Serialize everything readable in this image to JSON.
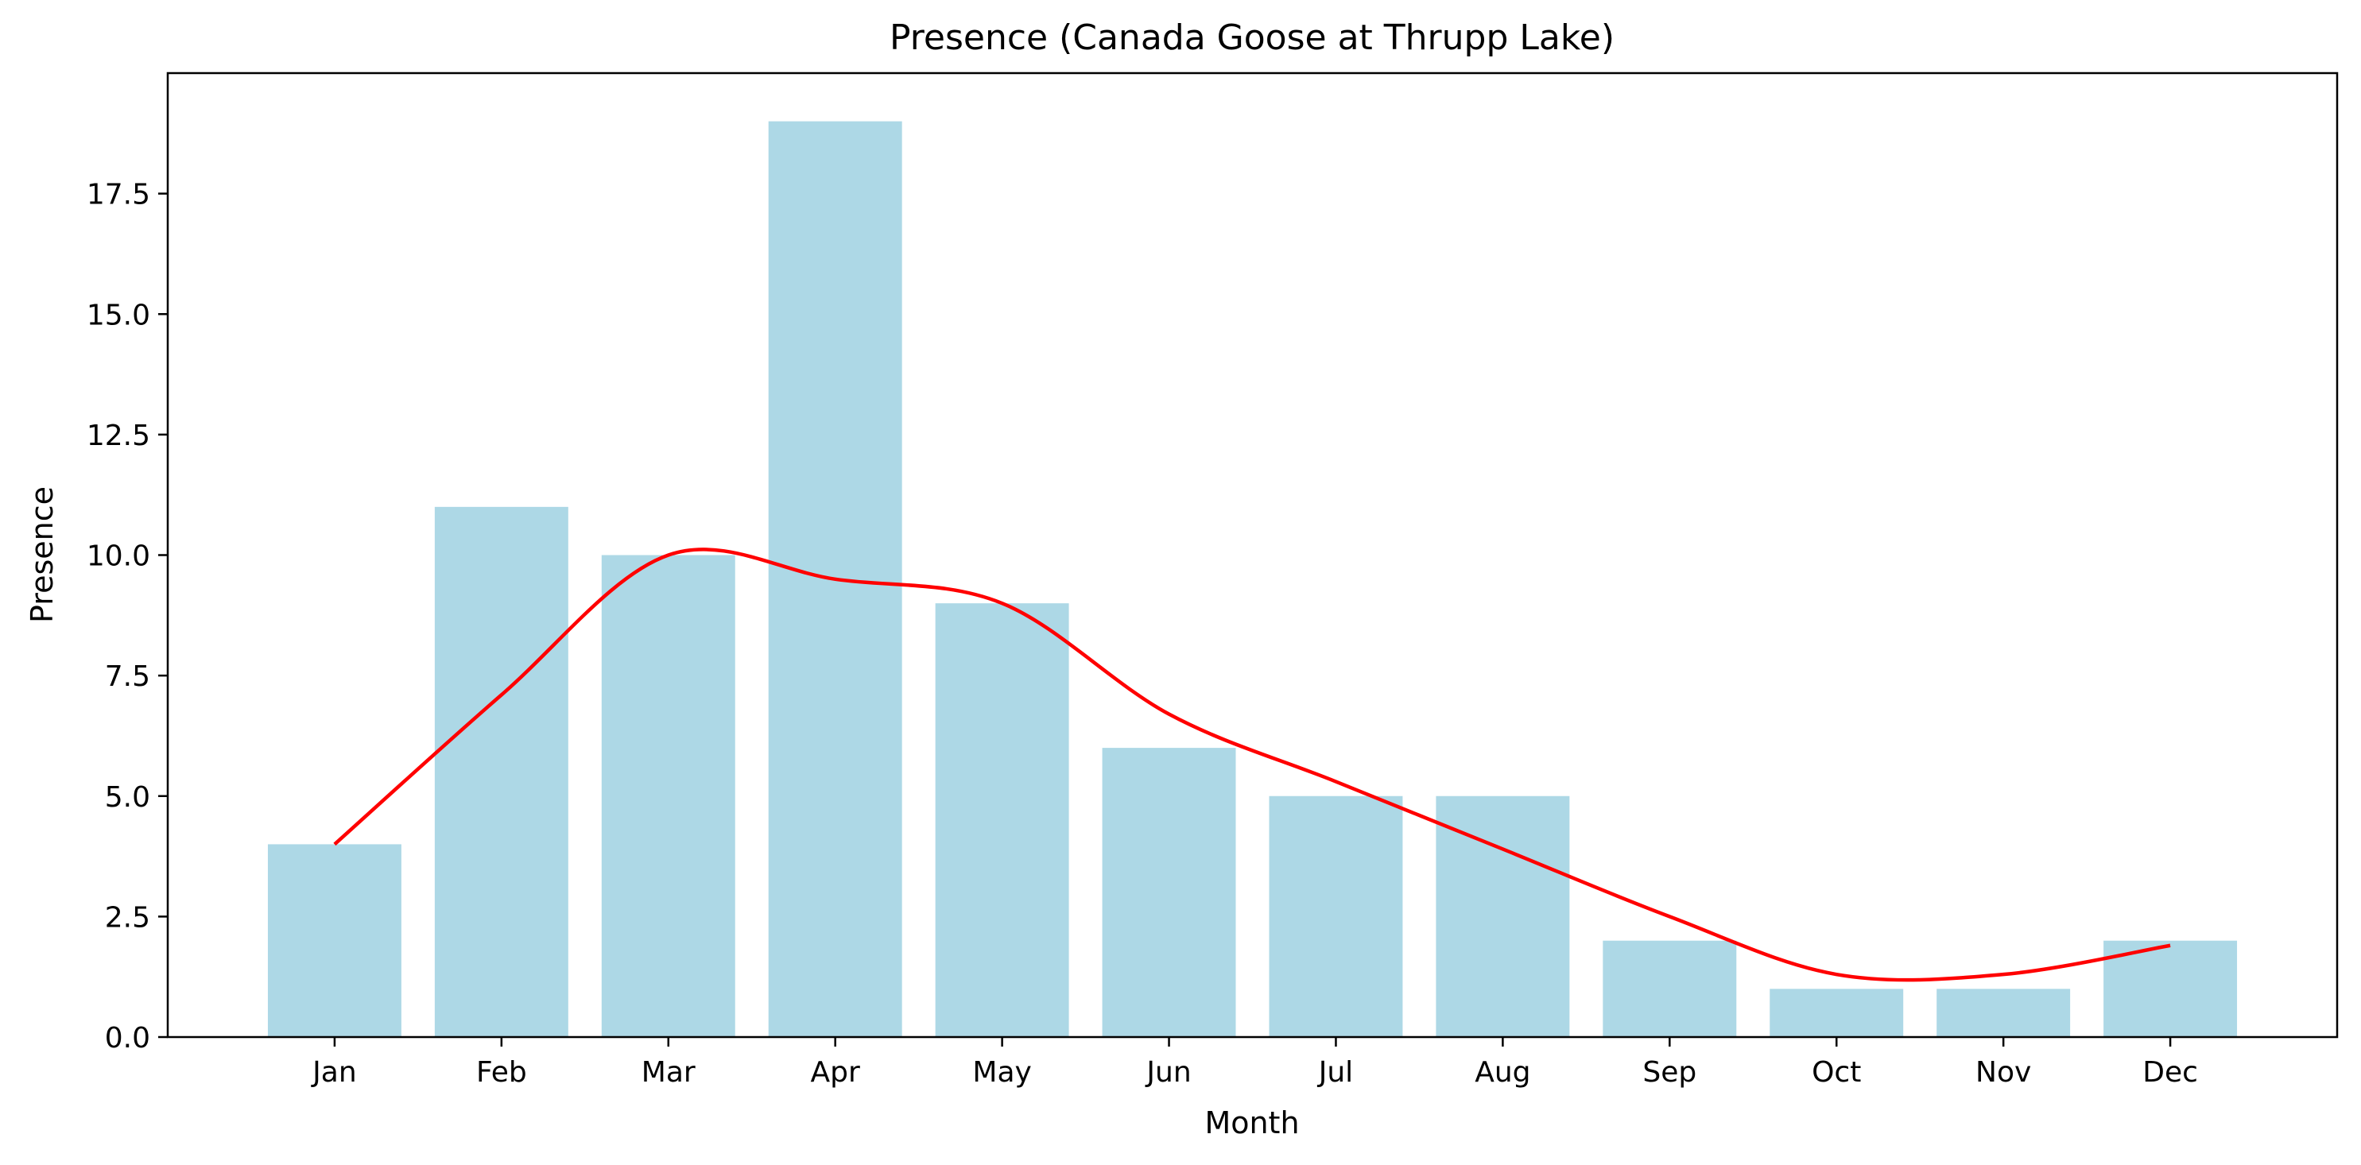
{
  "chart_data": {
    "type": "bar",
    "title": "Presence (Canada Goose at Thrupp Lake)",
    "xlabel": "Month",
    "ylabel": "Presence",
    "categories": [
      "Jan",
      "Feb",
      "Mar",
      "Apr",
      "May",
      "Jun",
      "Jul",
      "Aug",
      "Sep",
      "Oct",
      "Nov",
      "Dec"
    ],
    "series": [
      {
        "type": "bar",
        "values": [
          4,
          11,
          10,
          19,
          9,
          6,
          5,
          5,
          2,
          1,
          1,
          2
        ],
        "color": "#add8e6"
      },
      {
        "type": "line",
        "values": [
          4.0,
          7.1,
          10.0,
          9.5,
          9.0,
          6.7,
          5.3,
          3.9,
          2.5,
          1.3,
          1.3,
          1.9
        ],
        "color": "#ff0000",
        "smooth": true
      }
    ],
    "ylim": [
      0,
      20
    ],
    "yticks": [
      0.0,
      2.5,
      5.0,
      7.5,
      10.0,
      12.5,
      15.0,
      17.5
    ],
    "ytick_labels": [
      "0.0",
      "2.5",
      "5.0",
      "7.5",
      "10.0",
      "12.5",
      "15.0",
      "17.5"
    ],
    "grid": false,
    "legend": "none"
  }
}
